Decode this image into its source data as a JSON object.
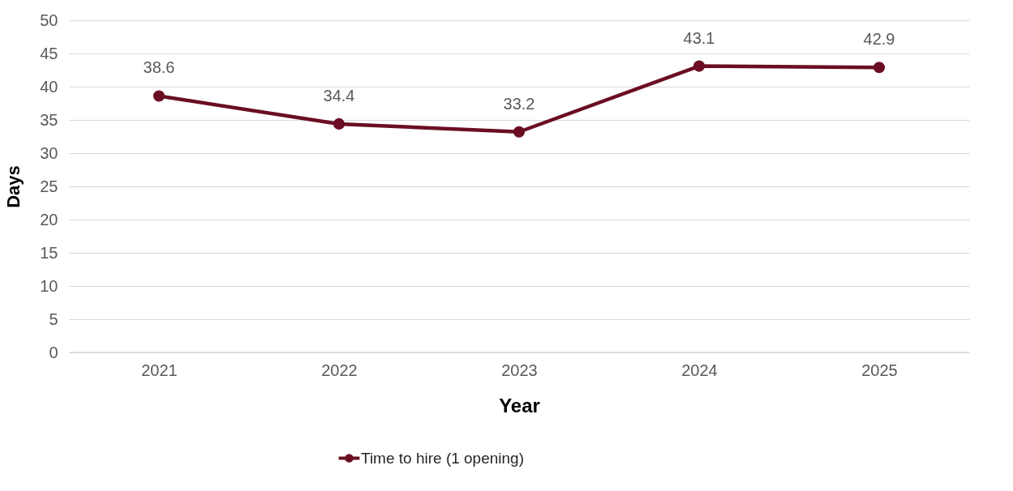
{
  "chart_data": {
    "type": "line",
    "xlabel": "Year",
    "ylabel": "Days",
    "categories": [
      "2021",
      "2022",
      "2023",
      "2024",
      "2025"
    ],
    "series": [
      {
        "name": "Time to hire (1 opening)",
        "color": "#6b0e23",
        "values": [
          38.6,
          34.4,
          33.2,
          43.1,
          42.9
        ]
      }
    ],
    "ylim": [
      0,
      50
    ],
    "yticks": [
      0,
      5,
      10,
      15,
      20,
      25,
      30,
      35,
      40,
      45,
      50
    ],
    "grid": "y",
    "legend": "bottom",
    "marker": "circle",
    "line_style": "solid",
    "data_labels": true
  }
}
